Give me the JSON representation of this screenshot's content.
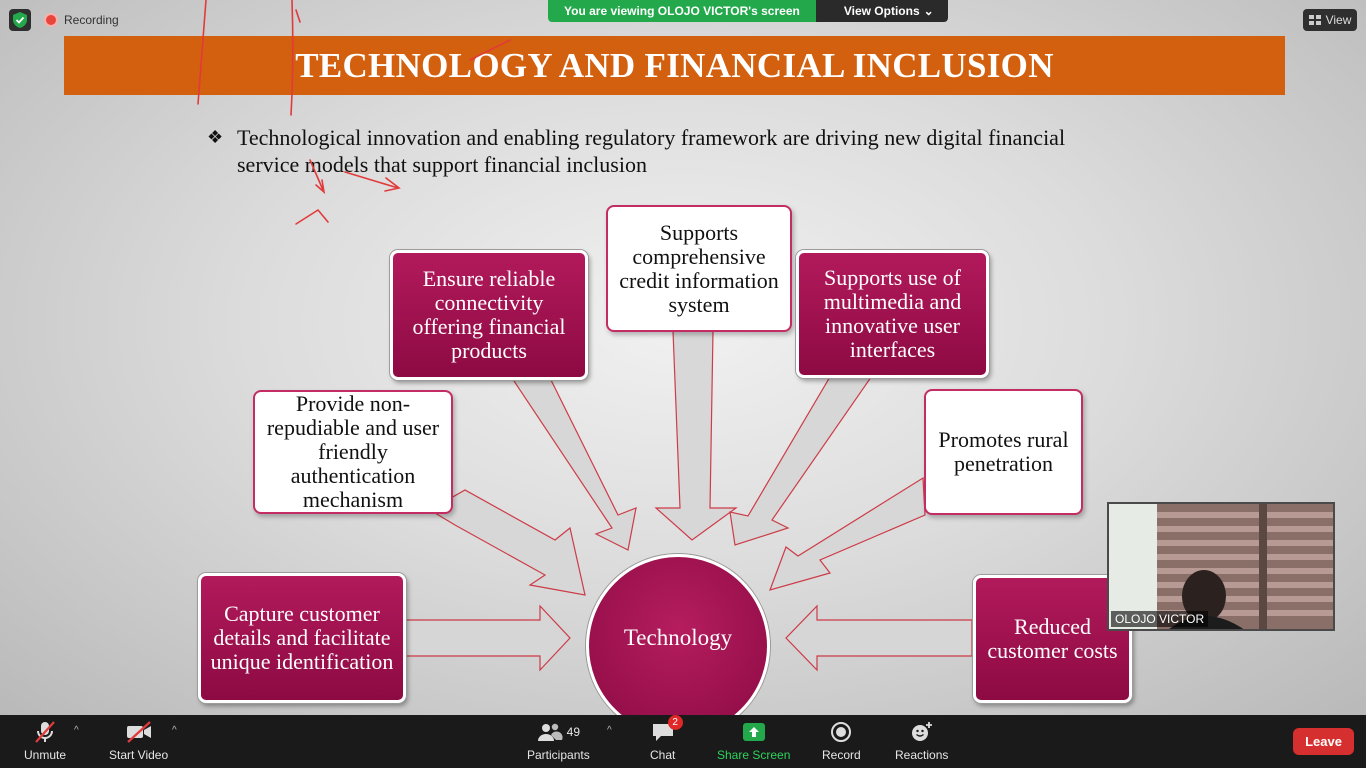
{
  "meeting": {
    "recording_label": "Recording",
    "banner_text": "You are viewing OLOJO VICTOR's screen",
    "view_options_label": "View Options",
    "view_label": "View"
  },
  "slide": {
    "title": "TECHNOLOGY AND FINANCIAL INCLUSION",
    "bullet_mark": "❖",
    "bullet_text": "Technological innovation and enabling regulatory framework are driving new digital financial  service models that support financial inclusion",
    "center": "Technology",
    "boxes": {
      "capture": "Capture customer details and facilitate unique identification",
      "auth": "Provide non-repudiable and user friendly authentication mechanism",
      "connect": "Ensure reliable connectivity offering financial products",
      "credit": "Supports comprehensive credit information system",
      "multimedia": "Supports use of multimedia and innovative user interfaces",
      "rural": "Promotes rural penetration",
      "costs": "Reduced customer costs"
    }
  },
  "video": {
    "participant_name": "OLOJO VICTOR"
  },
  "toolbar": {
    "unmute": "Unmute",
    "start_video": "Start Video",
    "participants": "Participants",
    "participant_count": "49",
    "chat": "Chat",
    "chat_badge": "2",
    "share_screen": "Share Screen",
    "record": "Record",
    "reactions": "Reactions",
    "leave": "Leave"
  },
  "colors": {
    "accent_orange": "#d2600f",
    "magenta": "#9e1150",
    "share_green": "#23a94c",
    "leave_red": "#d62f2f"
  }
}
